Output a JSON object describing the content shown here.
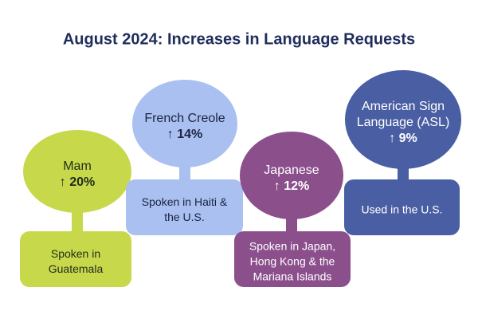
{
  "title": "August 2024: Increases in Language Requests",
  "items": [
    {
      "name": [
        "Mam"
      ],
      "change": "↑ 20%",
      "description": [
        "Spoken in",
        "Guatemala"
      ]
    },
    {
      "name": [
        "French Creole"
      ],
      "change": "↑ 14%",
      "description": [
        "Spoken in Haiti &",
        "the U.S."
      ]
    },
    {
      "name": [
        "Japanese"
      ],
      "change": "↑ 12%",
      "description": [
        "Spoken in Japan,",
        "Hong Kong & the",
        "Mariana Islands"
      ]
    },
    {
      "name": [
        "American Sign",
        "Language (ASL)"
      ],
      "change": "↑ 9%",
      "description": [
        "Used in the U.S."
      ]
    }
  ]
}
